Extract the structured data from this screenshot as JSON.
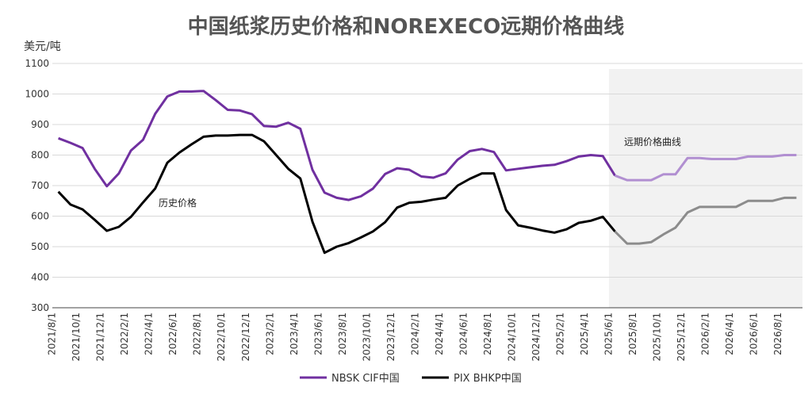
{
  "chart_data": {
    "type": "line",
    "title": "中国纸浆历史价格和NOREXECO远期价格曲线",
    "ylabel": "美元/吨",
    "ylim": [
      300,
      1100
    ],
    "yticks": [
      300,
      400,
      500,
      600,
      700,
      800,
      900,
      1000,
      1100
    ],
    "x": [
      "2021/8/1",
      "2021/9/1",
      "2021/10/1",
      "2021/11/1",
      "2021/12/1",
      "2022/1/1",
      "2022/2/1",
      "2022/3/1",
      "2022/4/1",
      "2022/5/1",
      "2022/6/1",
      "2022/7/1",
      "2022/8/1",
      "2022/9/1",
      "2022/10/1",
      "2022/11/1",
      "2022/12/1",
      "2023/1/1",
      "2023/2/1",
      "2023/3/1",
      "2023/4/1",
      "2023/5/1",
      "2023/6/1",
      "2023/7/1",
      "2023/8/1",
      "2023/9/1",
      "2023/10/1",
      "2023/11/1",
      "2023/12/1",
      "2024/1/1",
      "2024/2/1",
      "2024/3/1",
      "2024/4/1",
      "2024/5/1",
      "2024/6/1",
      "2024/7/1",
      "2024/8/1",
      "2024/9/1",
      "2024/10/1",
      "2024/11/1",
      "2024/12/1",
      "2025/1/1",
      "2025/2/1",
      "2025/3/1",
      "2025/4/1",
      "2025/5/1",
      "2025/6/1",
      "2025/7/1",
      "2025/8/1",
      "2025/9/1",
      "2025/10/1",
      "2025/11/1",
      "2025/12/1",
      "2026/1/1",
      "2026/2/1",
      "2026/3/1",
      "2026/4/1",
      "2026/5/1",
      "2026/6/1",
      "2026/7/1",
      "2026/8/1",
      "2026/9/1"
    ],
    "xtick_labels": [
      "2021/8/1",
      "2021/10/1",
      "2021/12/1",
      "2022/2/1",
      "2022/4/1",
      "2022/6/1",
      "2022/8/1",
      "2022/10/1",
      "2022/12/1",
      "2023/2/1",
      "2023/4/1",
      "2023/6/1",
      "2023/8/1",
      "2023/10/1",
      "2023/12/1",
      "2024/2/1",
      "2024/4/1",
      "2024/6/1",
      "2024/8/1",
      "2024/10/1",
      "2024/12/1",
      "2025/2/1",
      "2025/4/1",
      "2025/6/1",
      "2025/8/1",
      "2025/10/1",
      "2025/12/1",
      "2026/2/1",
      "2026/4/1",
      "2026/6/1",
      "2026/8/1"
    ],
    "forecast_start": "2025/6/1",
    "series": [
      {
        "name": "NBSK CIF中国",
        "color": "#7030a0",
        "forecast_color": "#b18fd1",
        "values": [
          855,
          840,
          823,
          755,
          698,
          740,
          815,
          850,
          935,
          992,
          1008,
          1008,
          1010,
          980,
          948,
          946,
          934,
          895,
          893,
          906,
          886,
          752,
          677,
          660,
          653,
          665,
          690,
          738,
          757,
          752,
          730,
          726,
          740,
          785,
          813,
          820,
          810,
          750,
          755,
          760,
          765,
          768,
          780,
          795,
          800,
          797,
          733,
          718,
          718,
          718,
          737,
          737,
          790,
          790,
          787,
          787,
          787,
          795,
          795,
          795,
          800,
          800
        ]
      },
      {
        "name": "PIX BHKP中国",
        "color": "#000000",
        "forecast_color": "#8c8c8c",
        "values": [
          680,
          638,
          622,
          588,
          552,
          565,
          598,
          645,
          690,
          775,
          808,
          835,
          860,
          864,
          864,
          866,
          866,
          845,
          800,
          755,
          723,
          582,
          480,
          500,
          512,
          530,
          550,
          580,
          628,
          644,
          647,
          654,
          660,
          700,
          722,
          740,
          740,
          620,
          570,
          562,
          553,
          546,
          557,
          578,
          585,
          598,
          550,
          510,
          510,
          515,
          540,
          562,
          612,
          630,
          630,
          630,
          630,
          650,
          650,
          650,
          660,
          660
        ]
      }
    ],
    "annotations": {
      "historical": "历史价格",
      "forward": "远期价格曲线"
    },
    "grid": {
      "x": false,
      "y": true
    },
    "legend": {
      "placement": "bottom-center"
    }
  }
}
